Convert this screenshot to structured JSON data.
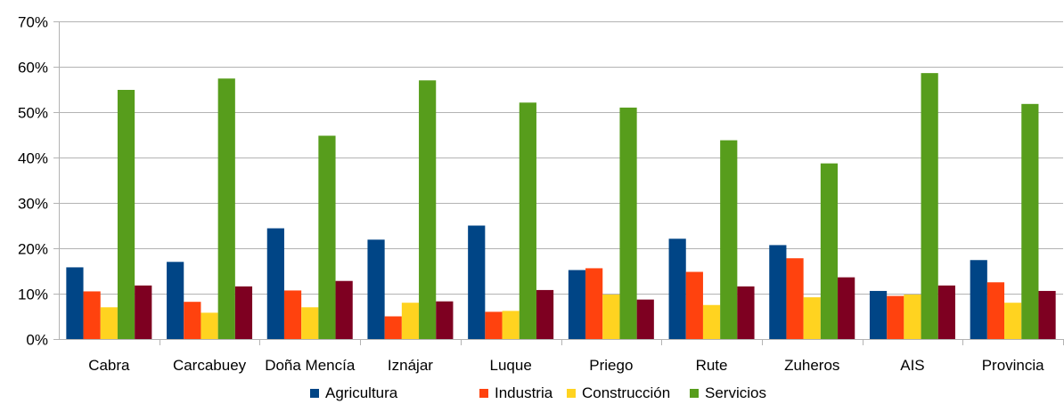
{
  "chart_data": {
    "type": "bar",
    "title": "",
    "xlabel": "",
    "ylabel": "",
    "ylim": [
      0,
      0.7
    ],
    "y_ticks": [
      0,
      0.1,
      0.2,
      0.3,
      0.4,
      0.5,
      0.6,
      0.7
    ],
    "y_tick_labels": [
      "0%",
      "10%",
      "20%",
      "30%",
      "40%",
      "50%",
      "60%",
      "70%"
    ],
    "grid": true,
    "legend_position": "bottom",
    "categories": [
      "Cabra",
      "Carcabuey",
      "Doña Mencía",
      "Iznájar",
      "Luque",
      "Priego",
      "Rute",
      "Zuheros",
      "AIS",
      "Provincia"
    ],
    "series": [
      {
        "name": "Agricultura",
        "color": "#004586",
        "values": [
          0.158,
          0.17,
          0.244,
          0.219,
          0.25,
          0.152,
          0.221,
          0.207,
          0.106,
          0.174
        ]
      },
      {
        "name": "Industria",
        "color": "#ff420e",
        "values": [
          0.105,
          0.082,
          0.107,
          0.05,
          0.06,
          0.156,
          0.148,
          0.178,
          0.095,
          0.125
        ]
      },
      {
        "name": "Construcción",
        "color": "#ffd320",
        "values": [
          0.07,
          0.058,
          0.07,
          0.08,
          0.062,
          0.098,
          0.075,
          0.092,
          0.098,
          0.08
        ]
      },
      {
        "name": "Servicios",
        "color": "#579d1c",
        "values": [
          0.549,
          0.574,
          0.448,
          0.57,
          0.521,
          0.51,
          0.438,
          0.387,
          0.586,
          0.518
        ]
      },
      {
        "color": "#7e0021",
        "values": [
          0.118,
          0.116,
          0.128,
          0.083,
          0.108,
          0.087,
          0.116,
          0.136,
          0.118,
          0.106
        ]
      }
    ]
  }
}
